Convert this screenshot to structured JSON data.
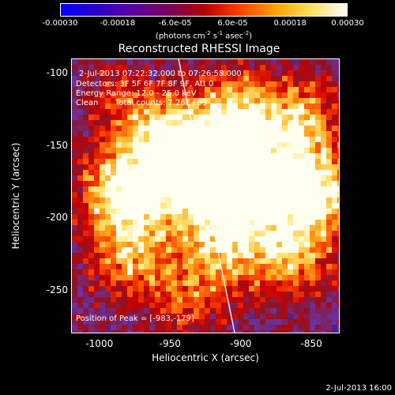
{
  "colorbar": {
    "ticks": [
      "-0.00030",
      "-0.00018",
      "-6.0e-05",
      "6.0e-05",
      "0.00018",
      "0.00030"
    ],
    "units_base": "(photons cm",
    "units_exp1": "-2",
    "units_mid1": " s",
    "units_exp2": "-1",
    "units_mid2": " asec",
    "units_exp3": "-2",
    "units_end": ")",
    "gradient_stops": [
      "#0000ff",
      "#2a00c8",
      "#5a00a0",
      "#7a0060",
      "#b00000",
      "#ff4000",
      "#ffa000",
      "#ffe060",
      "#ffffff"
    ]
  },
  "title": "Reconstructed RHESSI Image",
  "info": {
    "time_range": "2-Jul-2013 07:22:32.000 to 07:26:58.000",
    "detectors": "Detectors: 3F 5F 6F 7F 8F 9F, Att 0",
    "energy": "Energy Range: 12.0 - 25.0 keV",
    "method": "Clean",
    "counts": "Total counts: 7.26E+03",
    "peak": "Position of Peak = [-983,-179]"
  },
  "axes": {
    "xlabel": "Heliocentric X (arcsec)",
    "ylabel": "Heliocentric Y (arcsec)",
    "xlim": [
      -1020,
      -830
    ],
    "ylim": [
      -280,
      -90
    ],
    "xticks": [
      {
        "value": -1000,
        "label": "-1000"
      },
      {
        "value": -950,
        "label": "-950"
      },
      {
        "value": -900,
        "label": "-900"
      },
      {
        "value": -850,
        "label": "-850"
      }
    ],
    "yticks": [
      {
        "value": -100,
        "label": "-100"
      },
      {
        "value": -150,
        "label": "-150"
      },
      {
        "value": -200,
        "label": "-200"
      },
      {
        "value": -250,
        "label": "-250"
      }
    ]
  },
  "limb_line": {
    "color": "#ffffff"
  },
  "datestamp": "2-Jul-2013 16:00"
}
